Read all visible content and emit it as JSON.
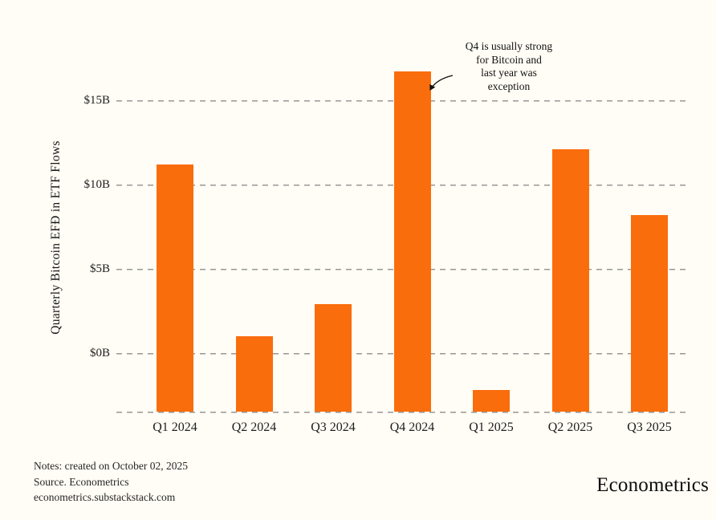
{
  "chart_data": {
    "type": "bar",
    "title": "",
    "categories": [
      "Q1 2024",
      "Q2 2024",
      "Q3 2024",
      "Q4 2024",
      "Q1 2025",
      "Q2 2025",
      "Q3 2025"
    ],
    "values": [
      11.2,
      1.0,
      2.9,
      16.7,
      -2.2,
      12.1,
      8.2
    ],
    "unit": "billions of USD",
    "xlabel": "",
    "ylabel": "Quarterly Bitcoin EFĐ in ETF Flows",
    "yticks": [
      0,
      5,
      10,
      15
    ],
    "ytick_labels": [
      "$0B",
      "$5B",
      "$10B",
      "$15B"
    ],
    "ylim": [
      -3.5,
      17.6
    ],
    "grid": "dashed horizontal gridlines plus dashed axis floor line",
    "legend": "none",
    "bar_color": "#fa6d0c",
    "annotation": {
      "text": "Q4 is usually strong\nfor Bitcoin and\nlast year was\nexception",
      "target": "Q4 2024"
    }
  },
  "footer": {
    "line1": "Notes: created on October 02, 2025",
    "line2": "Source. Econometrics",
    "line3": "econometrics.substackstack.com"
  },
  "brand": "Econometrics"
}
